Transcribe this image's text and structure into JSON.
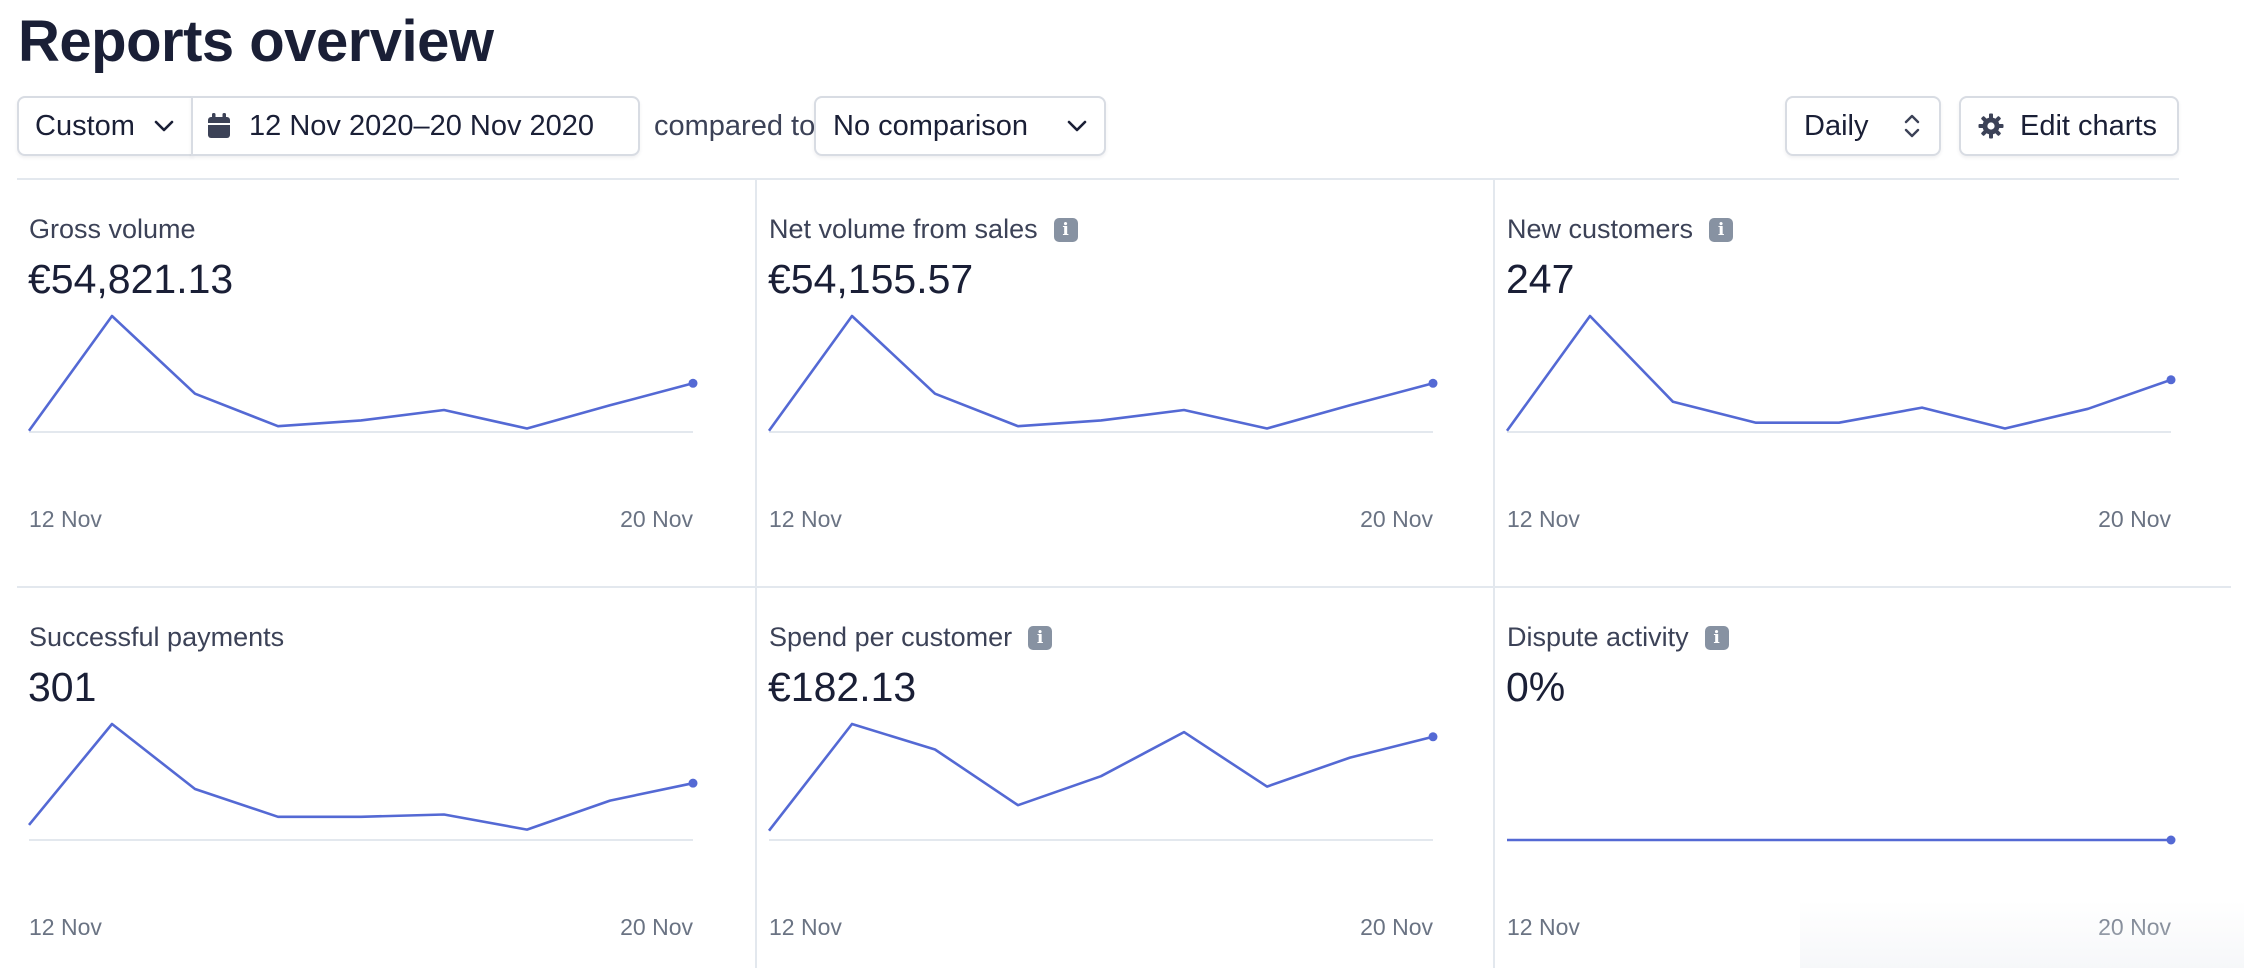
{
  "page": {
    "title": "Reports overview"
  },
  "toolbar": {
    "range_preset": "Custom",
    "date_range": "12 Nov 2020–20 Nov 2020",
    "compared_to_label": "compared to",
    "comparison": "No comparison",
    "interval": "Daily",
    "edit_charts_label": "Edit charts"
  },
  "colors": {
    "line": "#5469d4",
    "baseline": "#e3e8ee",
    "info_badge": "#8792a2"
  },
  "cards": [
    {
      "title": "Gross volume",
      "value": "€54,821.13",
      "has_info": false,
      "x_start": "12 Nov",
      "x_end": "20 Nov",
      "series": [
        0.01,
        1.0,
        0.33,
        0.05,
        0.1,
        0.19,
        0.03,
        0.23,
        0.42
      ]
    },
    {
      "title": "Net volume from sales",
      "value": "€54,155.57",
      "has_info": true,
      "x_start": "12 Nov",
      "x_end": "20 Nov",
      "series": [
        0.01,
        1.0,
        0.33,
        0.05,
        0.1,
        0.19,
        0.03,
        0.23,
        0.42
      ]
    },
    {
      "title": "New customers",
      "value": "247",
      "has_info": true,
      "x_start": "12 Nov",
      "x_end": "20 Nov",
      "series": [
        0.01,
        1.0,
        0.26,
        0.08,
        0.08,
        0.21,
        0.03,
        0.2,
        0.45
      ]
    },
    {
      "title": "Successful payments",
      "value": "301",
      "has_info": false,
      "x_start": "12 Nov",
      "x_end": "20 Nov",
      "series": [
        0.13,
        1.0,
        0.44,
        0.2,
        0.2,
        0.22,
        0.09,
        0.34,
        0.49
      ]
    },
    {
      "title": "Spend per customer",
      "value": "€182.13",
      "has_info": true,
      "x_start": "12 Nov",
      "x_end": "20 Nov",
      "series": [
        0.08,
        1.0,
        0.78,
        0.3,
        0.55,
        0.93,
        0.46,
        0.71,
        0.89
      ]
    },
    {
      "title": "Dispute activity",
      "value": "0%",
      "has_info": true,
      "x_start": "12 Nov",
      "x_end": "20 Nov",
      "series": [
        0,
        0,
        0,
        0,
        0,
        0,
        0,
        0,
        0
      ]
    }
  ]
}
